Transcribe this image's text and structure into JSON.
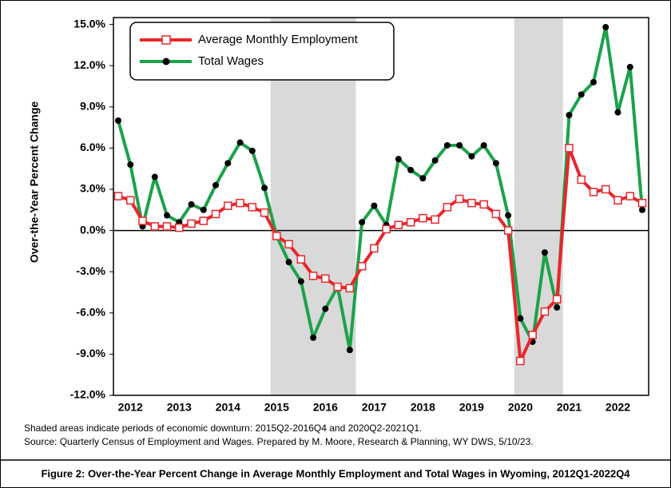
{
  "chart_data": {
    "type": "line",
    "y_label": "Over-the-Year Percent Change",
    "categories": [
      null,
      "2012",
      null,
      null,
      null,
      "2013",
      null,
      null,
      null,
      "2014",
      null,
      null,
      null,
      "2015",
      null,
      null,
      null,
      "2016",
      null,
      null,
      null,
      "2017",
      null,
      null,
      null,
      "2018",
      null,
      null,
      null,
      "2019",
      null,
      null,
      null,
      "2020",
      null,
      null,
      null,
      "2021",
      null,
      null,
      null,
      "2022",
      null,
      null
    ],
    "series": [
      {
        "name": "Average Monthly Employment",
        "color": "#e8262b",
        "marker": "square",
        "values": [
          2.5,
          2.2,
          0.7,
          0.3,
          0.3,
          0.2,
          0.5,
          0.7,
          1.2,
          1.8,
          2.0,
          1.7,
          1.3,
          -0.4,
          -1.0,
          -2.1,
          -3.3,
          -3.5,
          -4.1,
          -4.2,
          -2.6,
          -1.3,
          0.1,
          0.4,
          0.6,
          0.9,
          0.8,
          1.7,
          2.3,
          2.0,
          1.9,
          1.2,
          0.0,
          -9.5,
          -7.6,
          -5.9,
          -5.0,
          6.0,
          3.7,
          2.8,
          3.0,
          2.2,
          2.5,
          2.0
        ]
      },
      {
        "name": "Total Wages",
        "color": "#1ca24a",
        "marker": "circle",
        "values": [
          8.0,
          4.8,
          0.3,
          3.9,
          1.1,
          0.6,
          1.9,
          1.5,
          3.3,
          4.9,
          6.4,
          5.8,
          3.1,
          -0.4,
          -2.3,
          -3.7,
          -7.8,
          -5.7,
          -4.1,
          -8.7,
          0.6,
          1.8,
          0.4,
          5.2,
          4.4,
          3.8,
          5.1,
          6.2,
          6.2,
          5.4,
          6.2,
          4.9,
          1.1,
          -6.4,
          -8.1,
          -1.6,
          -5.6,
          8.4,
          9.9,
          10.8,
          14.8,
          8.6,
          11.9,
          1.5
        ]
      }
    ],
    "shaded_periods": [
      {
        "from": 13,
        "to": 19
      },
      {
        "from": 33,
        "to": 36
      }
    ],
    "ylim": [
      -12,
      15.5
    ],
    "yticks": [
      {
        "value": -12,
        "label": "-12.0%"
      },
      {
        "value": -9,
        "label": "-9.0%"
      },
      {
        "value": -6,
        "label": "-6.0%"
      },
      {
        "value": -3,
        "label": "-3.0%"
      },
      {
        "value": 0,
        "label": "0.0%"
      },
      {
        "value": 3,
        "label": "3.0%"
      },
      {
        "value": 6,
        "label": "6.0%"
      },
      {
        "value": 9,
        "label": "9.0%"
      },
      {
        "value": 12,
        "label": "12.0%"
      },
      {
        "value": 15,
        "label": "15.0%"
      }
    ],
    "legend": "upper left",
    "notes": [
      "Shaded areas indicate periods of economic downturn: 2015Q2-2016Q4 and 2020Q2-2021Q1.",
      "Source: Quarterly Census of Employment and Wages. Prepared by M. Moore, Research & Planning, WY DWS, 5/10/23."
    ],
    "caption": "Figure 2: Over-the-Year Percent Change in Average Monthly Employment and Total Wages in Wyoming, 2012Q1-2022Q4"
  }
}
